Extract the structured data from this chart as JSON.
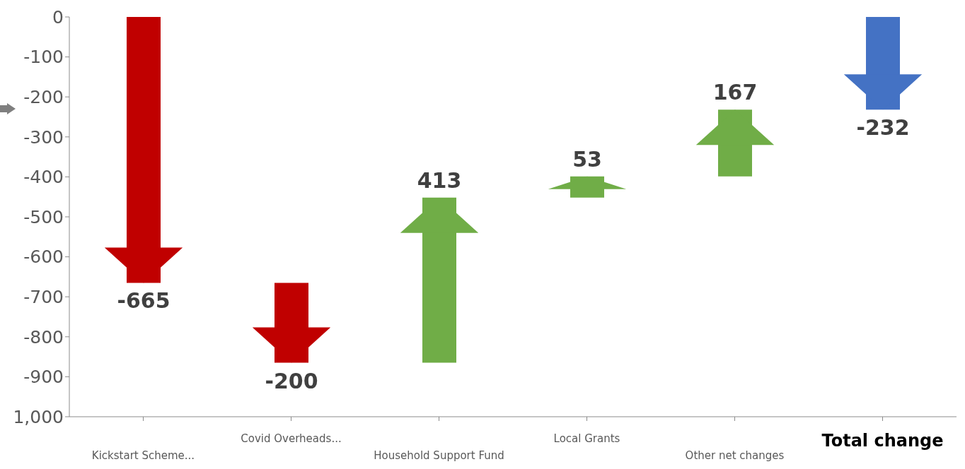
{
  "chart_data": {
    "type": "bar",
    "categories": [
      "Kickstart Scheme...",
      "Covid Overheads...",
      "Household Support Fund",
      "Local Grants",
      "Other net changes",
      "Total change"
    ],
    "values": [
      -665,
      -200,
      413,
      53,
      167,
      -232
    ],
    "base": [
      0,
      -665,
      -865,
      -452,
      -399,
      0
    ],
    "colors": [
      "#c00000",
      "#c00000",
      "#70ad47",
      "#70ad47",
      "#70ad47",
      "#4472c4"
    ],
    "data_labels": true,
    "ylim": [
      -1000,
      0
    ],
    "yticks": [
      {
        "value": -1000,
        "label": "1,000"
      },
      -900,
      -800,
      -700,
      -600,
      -500,
      -400,
      -300,
      -200,
      -100,
      0
    ],
    "grid": false,
    "legend": false
  }
}
